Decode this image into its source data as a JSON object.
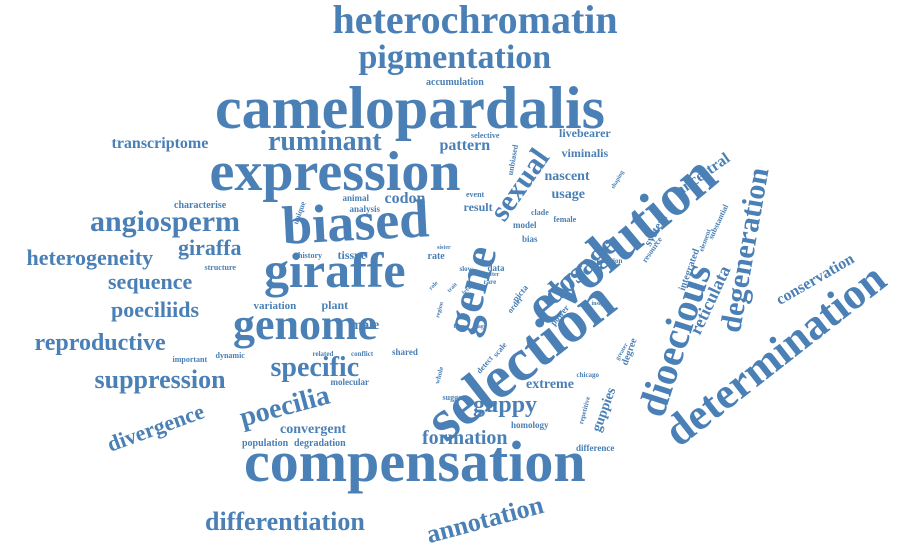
{
  "cloud": {
    "color": "#4a80b5",
    "words": [
      {
        "text": "heterochromatin",
        "weight": 40
      },
      {
        "text": "pigmentation",
        "weight": 34
      },
      {
        "text": "camelopardalis",
        "weight": 60
      },
      {
        "text": "expression",
        "weight": 56
      },
      {
        "text": "biased",
        "weight": 54
      },
      {
        "text": "evolution",
        "weight": 58
      },
      {
        "text": "selection",
        "weight": 60
      },
      {
        "text": "compensation",
        "weight": 58
      },
      {
        "text": "giraffe",
        "weight": 50
      },
      {
        "text": "genome",
        "weight": 44
      },
      {
        "text": "gene",
        "weight": 46
      },
      {
        "text": "determination",
        "weight": 44
      },
      {
        "text": "dioecious",
        "weight": 40
      },
      {
        "text": "degeneration",
        "weight": 30
      },
      {
        "text": "angiosperm",
        "weight": 30
      },
      {
        "text": "sexual",
        "weight": 30
      },
      {
        "text": "dosage",
        "weight": 30
      },
      {
        "text": "ruminant",
        "weight": 28
      },
      {
        "text": "heterogeneity",
        "weight": 22
      },
      {
        "text": "giraffa",
        "weight": 22
      },
      {
        "text": "sequence",
        "weight": 22
      },
      {
        "text": "poeciliids",
        "weight": 22
      },
      {
        "text": "reproductive",
        "weight": 24
      },
      {
        "text": "suppression",
        "weight": 26
      },
      {
        "text": "specific",
        "weight": 28
      },
      {
        "text": "poecilia",
        "weight": 28
      },
      {
        "text": "guppy",
        "weight": 24
      },
      {
        "text": "differentiation",
        "weight": 26
      },
      {
        "text": "annotation",
        "weight": 26
      },
      {
        "text": "divergence",
        "weight": 22
      },
      {
        "text": "formation",
        "weight": 20
      },
      {
        "text": "conservation",
        "weight": 16
      },
      {
        "text": "reticulata",
        "weight": 18
      },
      {
        "text": "transcriptome",
        "weight": 16
      },
      {
        "text": "pattern",
        "weight": 16
      },
      {
        "text": "codon",
        "weight": 16
      },
      {
        "text": "nascent",
        "weight": 14
      },
      {
        "text": "ancestral",
        "weight": 16
      },
      {
        "text": "viminalis",
        "weight": 12
      },
      {
        "text": "livebearer",
        "weight": 12
      },
      {
        "text": "usage",
        "weight": 14
      },
      {
        "text": "guppies",
        "weight": 14
      },
      {
        "text": "extreme",
        "weight": 14
      },
      {
        "text": "convergent",
        "weight": 14
      },
      {
        "text": "accumulation",
        "weight": 10
      },
      {
        "text": "characterise",
        "weight": 10
      },
      {
        "text": "male",
        "weight": 14
      },
      {
        "text": "tissue",
        "weight": 12
      },
      {
        "text": "plant",
        "weight": 12
      },
      {
        "text": "variation",
        "weight": 11
      },
      {
        "text": "result",
        "weight": 12
      },
      {
        "text": "system",
        "weight": 12
      },
      {
        "text": "integrated",
        "weight": 10
      },
      {
        "text": "degree",
        "weight": 10
      },
      {
        "text": "population",
        "weight": 10
      },
      {
        "text": "degradation",
        "weight": 10
      },
      {
        "text": "homology",
        "weight": 9
      },
      {
        "text": "difference",
        "weight": 9
      },
      {
        "text": "molecular",
        "weight": 9
      },
      {
        "text": "shared",
        "weight": 9
      },
      {
        "text": "dynamic",
        "weight": 8
      },
      {
        "text": "important",
        "weight": 8
      },
      {
        "text": "history",
        "weight": 8
      },
      {
        "text": "structure",
        "weight": 8
      },
      {
        "text": "analysis",
        "weight": 9
      },
      {
        "text": "animal",
        "weight": 9
      },
      {
        "text": "unique",
        "weight": 8
      },
      {
        "text": "event",
        "weight": 8
      },
      {
        "text": "selective",
        "weight": 8
      },
      {
        "text": "unbiased",
        "weight": 8
      },
      {
        "text": "model",
        "weight": 9
      },
      {
        "text": "bias",
        "weight": 9
      },
      {
        "text": "female",
        "weight": 8
      },
      {
        "text": "clade",
        "weight": 8
      },
      {
        "text": "rate",
        "weight": 10
      },
      {
        "text": "data",
        "weight": 9
      },
      {
        "text": "picta",
        "weight": 9
      },
      {
        "text": "power",
        "weight": 9
      },
      {
        "text": "order",
        "weight": 8
      },
      {
        "text": "scale",
        "weight": 8
      },
      {
        "text": "detect",
        "weight": 8
      },
      {
        "text": "whole",
        "weight": 7
      },
      {
        "text": "suggest",
        "weight": 8
      },
      {
        "text": "chicago",
        "weight": 7
      },
      {
        "text": "repetitive",
        "weight": 7
      },
      {
        "text": "substantial",
        "weight": 8
      },
      {
        "text": "resource",
        "weight": 8
      },
      {
        "text": "addition",
        "weight": 7
      },
      {
        "text": "element",
        "weight": 7
      },
      {
        "text": "related",
        "weight": 7
      },
      {
        "text": "conflict",
        "weight": 7
      },
      {
        "text": "slow",
        "weight": 7
      },
      {
        "text": "rare",
        "weight": 7
      },
      {
        "text": "after",
        "weight": 6
      },
      {
        "text": "role",
        "weight": 6
      },
      {
        "text": "trait",
        "weight": 6
      },
      {
        "text": "level",
        "weight": 6
      },
      {
        "text": "stage",
        "weight": 6
      },
      {
        "text": "form",
        "weight": 6
      },
      {
        "text": "sister",
        "weight": 6
      },
      {
        "text": "insight",
        "weight": 6
      },
      {
        "text": "shaping",
        "weight": 6
      },
      {
        "text": "greater",
        "weight": 6
      },
      {
        "text": "region",
        "weight": 6
      }
    ]
  }
}
